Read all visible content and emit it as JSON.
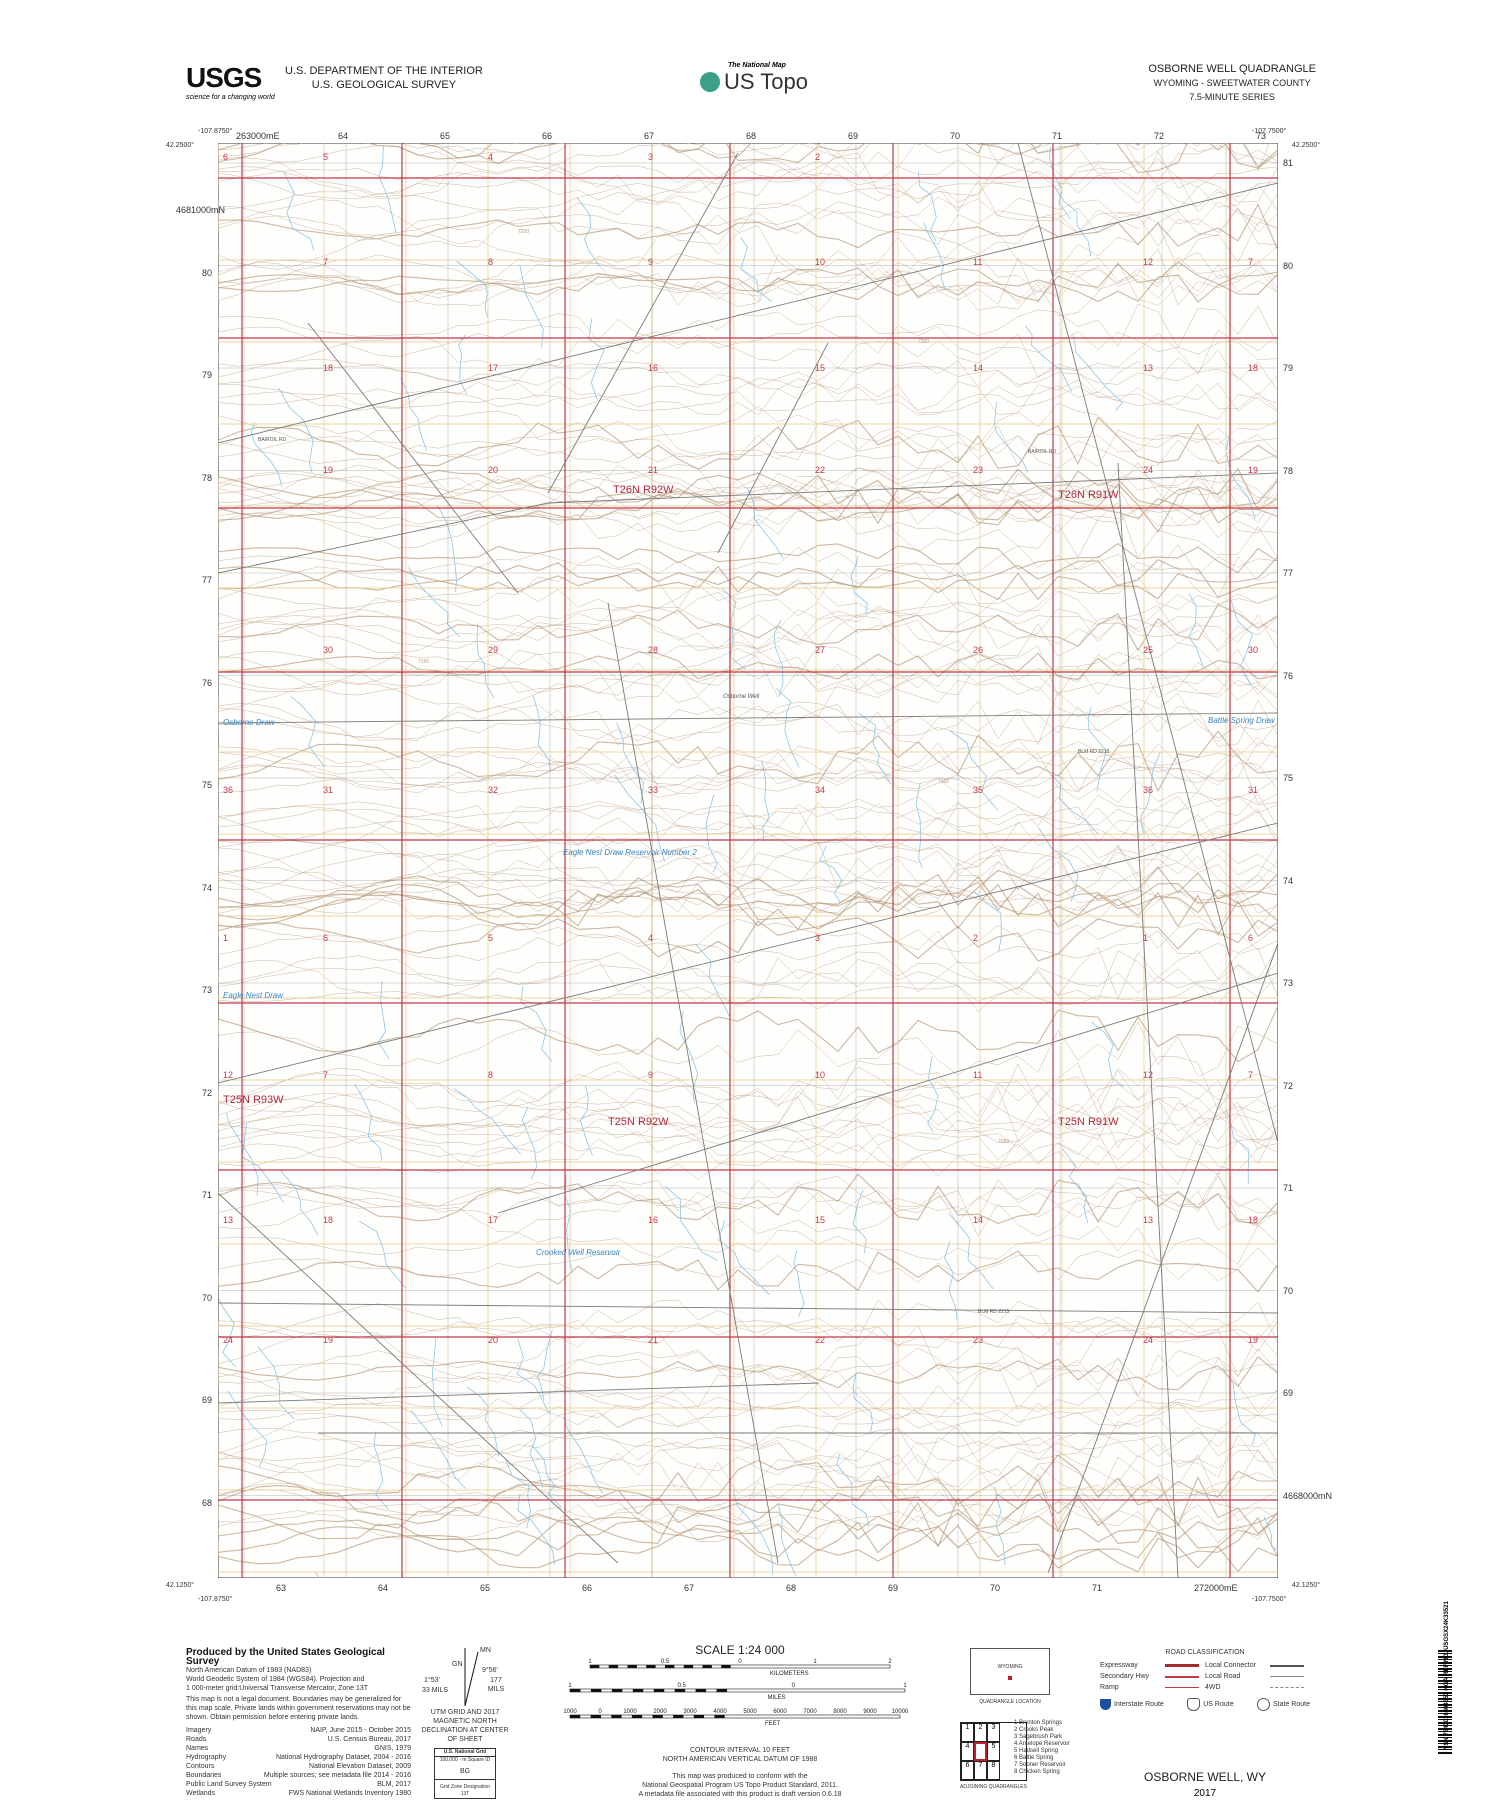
{
  "header": {
    "agency_logo": "USGS",
    "agency_tagline": "science for a changing world",
    "dept_line1": "U.S. DEPARTMENT OF THE INTERIOR",
    "dept_line2": "U.S. GEOLOGICAL SURVEY",
    "national_map": "The National Map",
    "product": "US Topo",
    "quad_title": "OSBORNE WELL QUADRANGLE",
    "state_county": "WYOMING - SWEETWATER COUNTY",
    "series": "7.5-MINUTE SERIES"
  },
  "corners": {
    "nw_lon": "-107.8750°",
    "nw_lat": "42.2500°",
    "ne_lon": "-107.7500°",
    "ne_lat": "42.2500°",
    "sw_lon": "-107.8750°",
    "sw_lat": "42.1250°",
    "se_lon": "-107.7500°",
    "se_lat": "42.1250°"
  },
  "grid": {
    "top": [
      "263000mE",
      "64",
      "65",
      "66",
      "67",
      "68",
      "69",
      "70",
      "71",
      "72",
      "73"
    ],
    "bottom": [
      "63",
      "64",
      "65",
      "66",
      "67",
      "68",
      "69",
      "70",
      "71",
      "272000mE"
    ],
    "left": [
      "4681000mN",
      "80",
      "79",
      "78",
      "77",
      "76",
      "75",
      "74",
      "73",
      "72",
      "71",
      "70",
      "69",
      "68"
    ],
    "right": [
      "81",
      "80",
      "79",
      "78",
      "77",
      "76",
      "75",
      "74",
      "73",
      "72",
      "71",
      "70",
      "69",
      "4668000mN"
    ]
  },
  "sections": [
    [
      "6",
      "5",
      "4",
      "3",
      "2",
      "",
      "",
      ""
    ],
    [
      "7",
      "8",
      "9",
      "10",
      "11",
      "12",
      "7"
    ],
    [
      "18",
      "17",
      "16",
      "15",
      "14",
      "13",
      "18"
    ],
    [
      "19",
      "20",
      "21",
      "22",
      "23",
      "24",
      "19"
    ],
    [
      "30",
      "29",
      "28",
      "27",
      "26",
      "25",
      "30"
    ],
    [
      "36",
      "31",
      "32",
      "33",
      "34",
      "35",
      "36",
      "31"
    ],
    [
      "1",
      "6",
      "5",
      "4",
      "3",
      "2",
      "1",
      "6"
    ],
    [
      "12",
      "7",
      "8",
      "9",
      "10",
      "11",
      "12",
      "7"
    ],
    [
      "13",
      "18",
      "17",
      "16",
      "15",
      "14",
      "13",
      "18"
    ],
    [
      "24",
      "19",
      "20",
      "21",
      "22",
      "23",
      "24",
      "19"
    ]
  ],
  "townships": [
    "T26N R92W",
    "T26N R91W",
    "T25N R93W",
    "T25N R92W",
    "T25N R91W"
  ],
  "places": [
    "Osborne Well",
    "Osborne Draw",
    "Battle Spring Draw",
    "Eagle Nest Draw Reservoir Number 2",
    "Eagle Nest Draw",
    "Crooked Well Reservoir"
  ],
  "roads": [
    "BAIROIL RD",
    "BAIROIL RD",
    "BLM RD 2215",
    "BLM RD 2215"
  ],
  "contour_labels": [
    "7250",
    "7200",
    "7150",
    "7100",
    "7050"
  ],
  "footer": {
    "produced_by": "Produced by the United States Geological Survey",
    "datum_lines": [
      "North American Datum of 1983 (NAD83)",
      "World Geodetic System of 1984 (WGS84). Projection and",
      "1 000-meter grid:Universal Transverse Mercator, Zone 13T"
    ],
    "legal": "This map is not a legal document. Boundaries may be generalized for this map scale. Private lands within government reservations may not be shown. Obtain permission before entering private lands.",
    "credits": [
      [
        "Imagery",
        "NAIP, June 2015 - October 2015"
      ],
      [
        "Roads",
        "U.S. Census Bureau, 2017"
      ],
      [
        "Names",
        "GNIS, 1979"
      ],
      [
        "Hydrography",
        "National Hydrography Dataset, 2004 - 2016"
      ],
      [
        "Contours",
        "National Elevation Dataset, 2009"
      ],
      [
        "Boundaries",
        "Multiple sources; see metadata file 2014 - 2016"
      ],
      [
        "Public Land Survey System",
        "BLM, 2017"
      ],
      [
        "Wetlands",
        "FWS National Wetlands Inventory 1980"
      ]
    ],
    "declination": {
      "mn": "MN",
      "gn": "GN",
      "gn_angle": "1°53'",
      "gn_mils": "33 MILS",
      "mn_angle": "9°56'",
      "mn_mils": "177 MILS",
      "caption": "UTM GRID AND 2017 MAGNETIC NORTH DECLINATION AT CENTER OF SHEET"
    },
    "usng": {
      "title": "U.S. National Grid",
      "sub": "100,000 - m Square ID",
      "square": "BG",
      "gzd_label": "Grid Zone Designation",
      "gzd": "13T"
    },
    "scale": {
      "title": "SCALE 1:24 000",
      "km_ticks": [
        "1",
        "0.5",
        "0",
        "1",
        "2"
      ],
      "km_label": "KILOMETERS",
      "m_ticks": [
        "1000",
        "500",
        "0",
        "1000",
        "2000"
      ],
      "m_label": "METERS",
      "mi_ticks": [
        "1",
        "0.5",
        "0",
        "1"
      ],
      "mi_label": "MILES",
      "ft_ticks": [
        "1000",
        "0",
        "1000",
        "2000",
        "3000",
        "4000",
        "5000",
        "6000",
        "7000",
        "8000",
        "9000",
        "10000"
      ],
      "ft_label": "FEET"
    },
    "contour_interval": "CONTOUR INTERVAL 10 FEET",
    "vertical_datum": "NORTH AMERICAN VERTICAL DATUM OF 1988",
    "standard": [
      "This map was produced to conform with the",
      "National Geospatial Program US Topo Product Standard, 2011.",
      "A metadata file associated with this product is draft version 0.6.18"
    ],
    "location": {
      "state": "WYOMING",
      "caption": "QUADRANGLE LOCATION"
    },
    "adjoining": {
      "caption": "ADJOINING QUADRANGLES",
      "cells": [
        "1",
        "2",
        "3",
        "4",
        "",
        "5",
        "6",
        "7",
        "8"
      ],
      "names": [
        "1 Brenton Springs",
        "2 Crooks Peak",
        "3 Sagebrush Park",
        "4 Antelope Reservoir",
        "5 Hadsell Spring",
        "6 Battle Spring",
        "7 Sooner Reservoir",
        "8 Chicken Spring"
      ]
    },
    "roads": {
      "title": "ROAD CLASSIFICATION",
      "items": [
        "Expressway",
        "Secondary Hwy",
        "Ramp",
        "Local Connector",
        "Local Road",
        "4WD"
      ],
      "routes": [
        "Interstate Route",
        "US Route",
        "State Route"
      ]
    },
    "footer_title": "OSBORNE WELL, WY",
    "year": "2017",
    "barcode": "NSN 7643016404853 NGA REF NO. USGSX24K33521"
  },
  "colors": {
    "section_line": "#c0394b",
    "utm_line": "#444444",
    "contour": "#b89a7c",
    "stream": "#8ec6e8",
    "road": "#7a7a7a",
    "survey": "#e8c889",
    "township_label": "#b0283e"
  }
}
